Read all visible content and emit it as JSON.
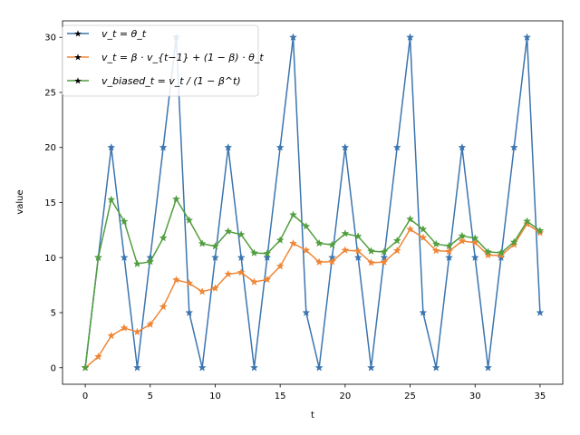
{
  "chart_data": {
    "type": "line",
    "xlabel": "t",
    "ylabel": "value",
    "xlim": [
      -1.75,
      36.75
    ],
    "ylim": [
      -1.5,
      31.5
    ],
    "xticks": [
      0,
      5,
      10,
      15,
      20,
      25,
      30,
      35
    ],
    "yticks": [
      0,
      5,
      10,
      15,
      20,
      25,
      30
    ],
    "grid": false,
    "legend_position": "top-left",
    "x": [
      0,
      1,
      2,
      3,
      4,
      5,
      6,
      7,
      8,
      9,
      10,
      11,
      12,
      13,
      14,
      15,
      16,
      17,
      18,
      19,
      20,
      21,
      22,
      23,
      24,
      25,
      26,
      27,
      28,
      29,
      30,
      31,
      32,
      33,
      34,
      35
    ],
    "series": [
      {
        "name": "v_t = θ_t",
        "color": "#3b75af",
        "marker": "star",
        "values": [
          0,
          10,
          20,
          10,
          0,
          10,
          20,
          30,
          5,
          0,
          10,
          20,
          10,
          0,
          10,
          20,
          30,
          5,
          0,
          10,
          20,
          10,
          0,
          10,
          20,
          30,
          5,
          0,
          10,
          20,
          10,
          0,
          10,
          20,
          30,
          5
        ]
      },
      {
        "name": "v_t = β · v_{t−1} + (1 − β) · θ_t",
        "color": "#ef8636",
        "marker": "star",
        "values": [
          0,
          1.0,
          2.9,
          3.61,
          3.25,
          3.93,
          5.53,
          7.98,
          7.68,
          6.91,
          7.22,
          8.5,
          8.65,
          7.79,
          8.01,
          9.21,
          11.29,
          10.66,
          9.59,
          9.63,
          10.67,
          10.6,
          9.54,
          9.59,
          10.63,
          12.57,
          11.81,
          10.63,
          10.57,
          11.51,
          11.36,
          10.22,
          10.2,
          11.18,
          13.06,
          12.26
        ]
      },
      {
        "name": "v_biased_t = v_t / (1 − β^t)",
        "color": "#519e3e",
        "marker": "star",
        "values": [
          0,
          10.0,
          15.26,
          13.28,
          9.43,
          9.63,
          11.78,
          15.31,
          13.39,
          11.27,
          11.03,
          12.38,
          12.09,
          10.42,
          10.37,
          11.58,
          13.88,
          12.84,
          11.3,
          11.16,
          12.18,
          11.93,
          10.59,
          10.52,
          11.53,
          13.49,
          12.57,
          11.23,
          11.06,
          11.97,
          11.76,
          10.52,
          10.44,
          11.4,
          13.3,
          12.44
        ]
      }
    ]
  }
}
